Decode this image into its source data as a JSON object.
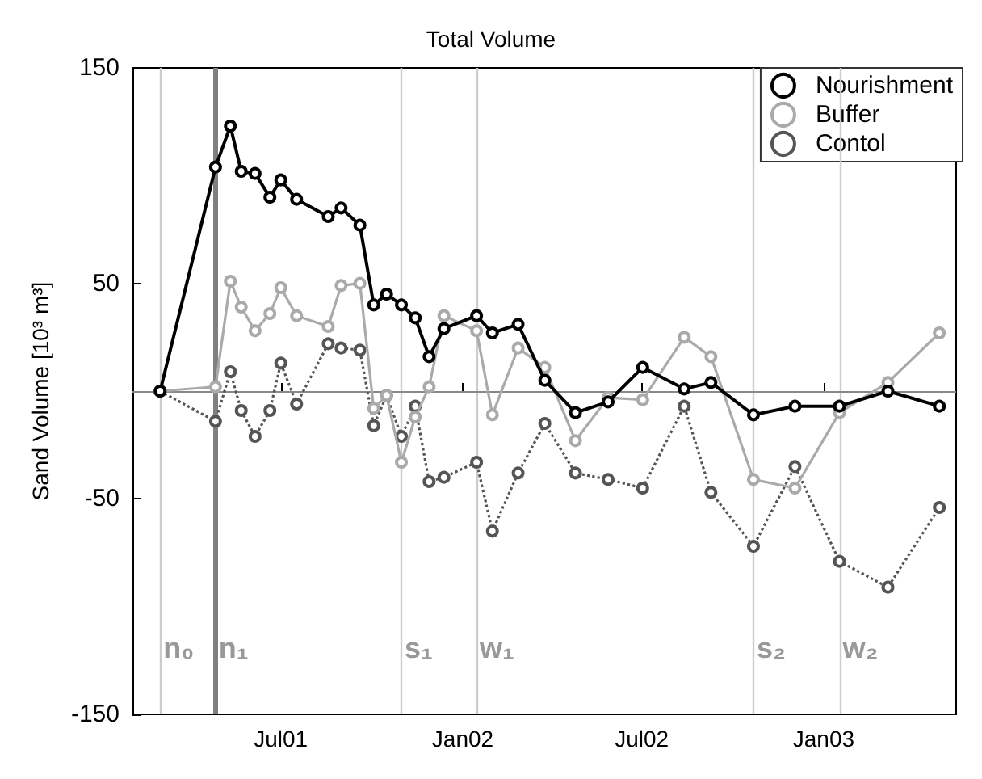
{
  "chart_data": {
    "type": "line",
    "title": "Total Volume",
    "ylabel": "Sand Volume [10³ m³]",
    "x": [
      "2001-03-01",
      "2001-04-26",
      "2001-05-11",
      "2001-05-22",
      "2001-06-05",
      "2001-06-20",
      "2001-07-01",
      "2001-07-17",
      "2001-08-18",
      "2001-08-31",
      "2001-09-19",
      "2001-10-03",
      "2001-10-16",
      "2001-10-31",
      "2001-11-14",
      "2001-11-28",
      "2001-12-13",
      "2002-01-15",
      "2002-01-31",
      "2002-02-26",
      "2002-03-25",
      "2002-04-25",
      "2002-05-28",
      "2002-07-02",
      "2002-08-13",
      "2002-09-09",
      "2002-10-22",
      "2002-12-03",
      "2003-01-17",
      "2003-03-07",
      "2003-04-28"
    ],
    "series": [
      {
        "name": "Nourishment",
        "color": "#000000",
        "line_style": "solid",
        "values": [
          0,
          104,
          123,
          102,
          101,
          90,
          98,
          89,
          81,
          85,
          77,
          40,
          45,
          40,
          34,
          16,
          29,
          35,
          27,
          31,
          5,
          -10,
          -5,
          11,
          1,
          4,
          -11,
          -7,
          -7,
          0,
          -7
        ]
      },
      {
        "name": "Buffer",
        "color": "#aaaaaa",
        "line_style": "solid",
        "values": [
          0,
          2,
          51,
          39,
          28,
          36,
          48,
          35,
          30,
          49,
          50,
          -8,
          -2,
          -33,
          -12,
          2,
          35,
          28,
          -11,
          20,
          11,
          -23,
          -3,
          -4,
          25,
          16,
          -41,
          -45,
          -10,
          4,
          27
        ]
      },
      {
        "name": "Contol",
        "color": "#555555",
        "line_style": "dotted",
        "values": [
          0,
          -14,
          9,
          -9,
          -21,
          -9,
          13,
          -6,
          22,
          20,
          19,
          -16,
          -2,
          -21,
          -7,
          -42,
          -40,
          -33,
          -65,
          -38,
          -15,
          -38,
          -41,
          -45,
          -7,
          -47,
          -72,
          -35,
          -79,
          -91,
          -54
        ]
      }
    ],
    "xlim": [
      "2001-02-01",
      "2003-05-15"
    ],
    "xticks": [
      {
        "value": "2001-07-01",
        "label": "Jul01"
      },
      {
        "value": "2002-01-01",
        "label": "Jan02"
      },
      {
        "value": "2002-07-01",
        "label": "Jul02"
      },
      {
        "value": "2003-01-01",
        "label": "Jan03"
      }
    ],
    "ylim": [
      -150,
      150
    ],
    "yticks": [
      -150,
      -50,
      50,
      150
    ],
    "ref_lines": [
      {
        "axis": "y",
        "value": 0,
        "color": "#888888"
      },
      {
        "axis": "x",
        "value": "2001-03-01",
        "label": "n₀",
        "color": "#cccccc"
      },
      {
        "axis": "x",
        "value": "2001-04-26",
        "label": "n₁",
        "color": "#808080"
      },
      {
        "axis": "x",
        "value": "2001-10-31",
        "label": "s₁",
        "color": "#cccccc"
      },
      {
        "axis": "x",
        "value": "2002-01-15",
        "label": "w₁",
        "color": "#cccccc"
      },
      {
        "axis": "x",
        "value": "2002-10-22",
        "label": "s₂",
        "color": "#cccccc"
      },
      {
        "axis": "x",
        "value": "2003-01-17",
        "label": "w₂",
        "color": "#cccccc"
      }
    ],
    "marker": "circle",
    "grid": false,
    "legend": "top right"
  }
}
